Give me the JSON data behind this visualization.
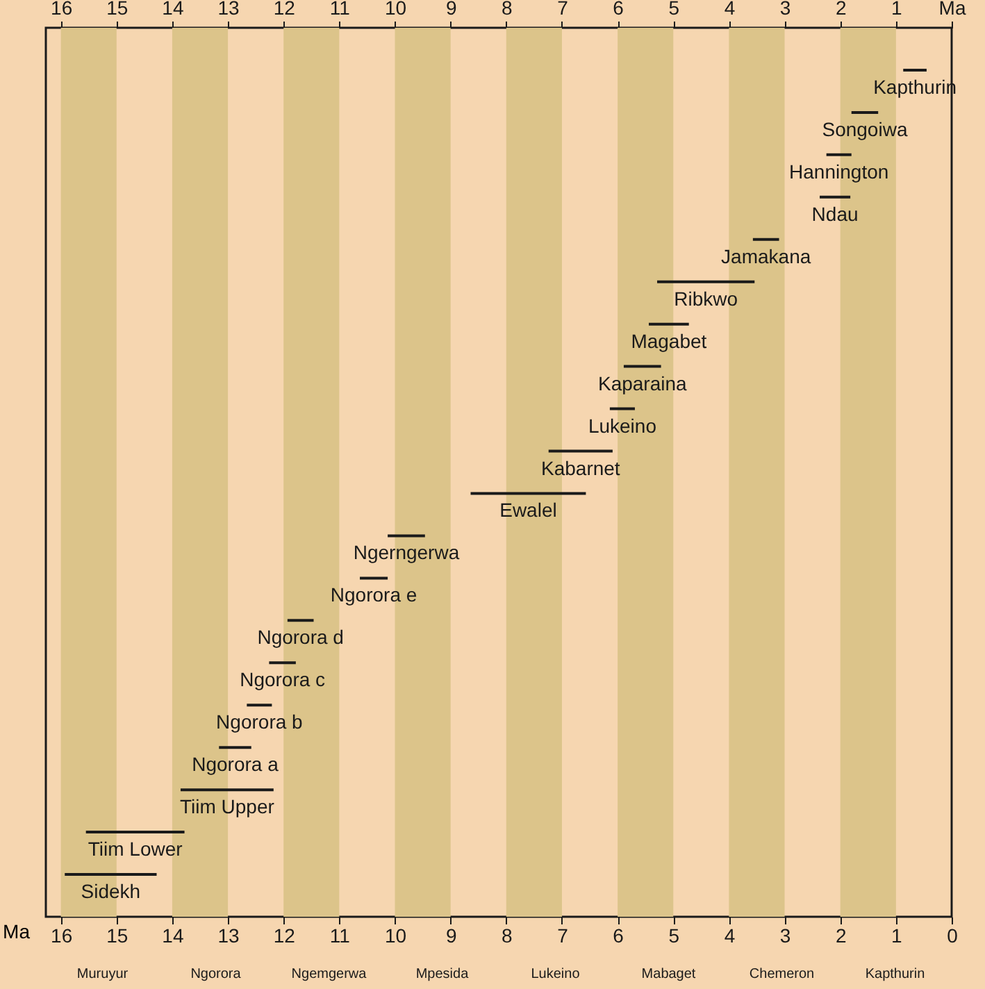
{
  "chart_data": {
    "type": "bar",
    "orientation": "horizontal",
    "xlabel": "Ma",
    "tick_labels": "x",
    "categories": [
      "Kapthurin",
      "Songoiwa",
      "Hannington",
      "Ndau",
      "Jamakana",
      "Ribkwo",
      "Magabet",
      "Kaparaina",
      "Lukeino",
      "Kabarnet",
      "Ewalel",
      "Ngerngerwa",
      "Ngorora e",
      "Ngorora d",
      "Ngorora c",
      "Ngorora b",
      "Ngorora a",
      "Tiim Upper",
      "Tiim Lower",
      "Sidekh"
    ],
    "base": [
      0.45,
      1.32,
      1.8,
      1.82,
      3.1,
      3.54,
      4.72,
      5.22,
      5.69,
      6.09,
      6.57,
      9.46,
      10.13,
      11.46,
      11.78,
      12.21,
      12.58,
      12.18,
      13.78,
      14.28
    ],
    "values": [
      0.42,
      0.48,
      0.45,
      0.55,
      0.47,
      1.75,
      0.72,
      0.67,
      0.45,
      1.15,
      2.07,
      0.67,
      0.5,
      0.47,
      0.48,
      0.45,
      0.58,
      1.67,
      1.77,
      1.65
    ],
    "color": "#1a1a1a",
    "xlim": [
      16.27,
      0
    ],
    "xticks": [
      16,
      15,
      14,
      13,
      12,
      11,
      10,
      9,
      8,
      7,
      6,
      5,
      4,
      3,
      2,
      1,
      0
    ],
    "x2lim": [
      16.27,
      0
    ],
    "x2ticks": [
      16,
      15,
      14,
      13,
      12,
      11,
      10,
      9,
      8,
      7,
      6,
      5,
      4,
      3,
      2,
      1,
      {
        "value": 0,
        "label": "Ma"
      }
    ],
    "bands": [
      {
        "axis": "x",
        "from": 15,
        "to": 16,
        "color": "#dcc48a"
      },
      {
        "axis": "x",
        "from": 13,
        "to": 14,
        "color": "#dcc48a"
      },
      {
        "axis": "x",
        "from": 11,
        "to": 12,
        "color": "#dcc48a"
      },
      {
        "axis": "x",
        "from": 9,
        "to": 10,
        "color": "#dcc48a"
      },
      {
        "axis": "x",
        "from": 7,
        "to": 8,
        "color": "#dcc48a"
      },
      {
        "axis": "x",
        "from": 5,
        "to": 6,
        "color": "#dcc48a"
      },
      {
        "axis": "x",
        "from": 3,
        "to": 4,
        "color": "#dcc48a"
      },
      {
        "axis": "x",
        "from": 1,
        "to": 2,
        "color": "#dcc48a"
      }
    ],
    "annotations": [
      "Muruyur",
      "Ngorora",
      "Ngemgerwa",
      "Mpesida",
      "Lukeino",
      "Mabaget",
      "Chemeron",
      "Kapthurin"
    ]
  }
}
